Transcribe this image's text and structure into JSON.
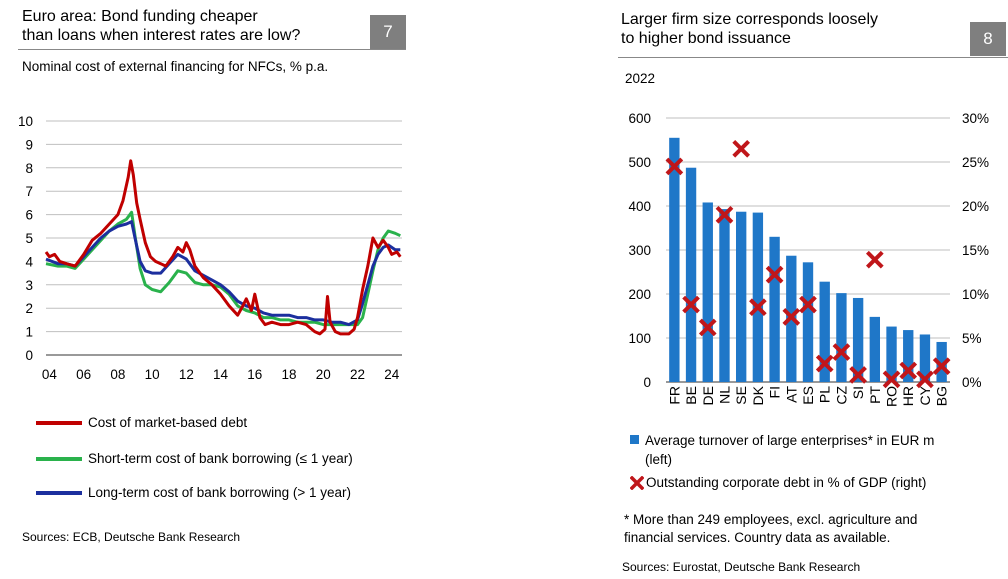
{
  "colors": {
    "market": "#c00000",
    "short_term": "#2ab24c",
    "long_term": "#1c2f9e",
    "bars": "#1f77c8",
    "markers": "#c0161a",
    "header_box": "#7f7f7f"
  },
  "left": {
    "title_line1": "Euro area: Bond funding cheaper",
    "title_line2": "than loans when interest rates are low?",
    "number": "7",
    "subtitle": "Nominal cost of external financing for NFCs, % p.a.",
    "legend": {
      "market": "Cost of market-based debt",
      "short": "Short-term cost of bank borrowing (≤ 1 year)",
      "long": "Long-term cost of bank borrowing (> 1 year)"
    },
    "source": "Sources: ECB, Deutsche Bank Research"
  },
  "right": {
    "title_line1": "Larger firm size corresponds loosely",
    "title_line2": "to higher bond issuance",
    "number": "8",
    "year_label": "2022",
    "legend": {
      "bars": "Average turnover of large enterprises* in EUR m",
      "bars_cont": "(left)",
      "markers": "Outstanding corporate debt in % of GDP (right)"
    },
    "note_line1": "* More than 249 employees, excl. agriculture and",
    "note_line2": "financial services. Country data as available.",
    "source": "Sources: Eurostat, Deutsche Bank Research"
  },
  "chart_data": [
    {
      "type": "line",
      "x_ticks": [
        "04",
        "06",
        "08",
        "10",
        "12",
        "14",
        "16",
        "18",
        "20",
        "22",
        "24"
      ],
      "y_ticks": [
        "0",
        "1",
        "2",
        "3",
        "4",
        "5",
        "6",
        "7",
        "8",
        "9",
        "10"
      ],
      "ylim": [
        0,
        10
      ],
      "xlim": [
        2003.8,
        2024.6
      ],
      "grid": true,
      "series": [
        {
          "name": "Cost of market-based debt",
          "points": [
            [
              2003.8,
              4.4
            ],
            [
              2004.0,
              4.2
            ],
            [
              2004.3,
              4.3
            ],
            [
              2004.6,
              4.0
            ],
            [
              2005.0,
              3.9
            ],
            [
              2005.5,
              3.8
            ],
            [
              2006.0,
              4.3
            ],
            [
              2006.5,
              4.9
            ],
            [
              2007.0,
              5.2
            ],
            [
              2007.5,
              5.6
            ],
            [
              2008.0,
              6.0
            ],
            [
              2008.3,
              6.6
            ],
            [
              2008.6,
              7.6
            ],
            [
              2008.75,
              8.3
            ],
            [
              2008.9,
              7.7
            ],
            [
              2009.1,
              6.5
            ],
            [
              2009.3,
              5.8
            ],
            [
              2009.6,
              4.8
            ],
            [
              2009.9,
              4.2
            ],
            [
              2010.2,
              4.0
            ],
            [
              2010.5,
              3.9
            ],
            [
              2010.8,
              3.8
            ],
            [
              2011.2,
              4.2
            ],
            [
              2011.5,
              4.6
            ],
            [
              2011.8,
              4.4
            ],
            [
              2012.0,
              4.8
            ],
            [
              2012.2,
              4.5
            ],
            [
              2012.5,
              3.8
            ],
            [
              2012.8,
              3.5
            ],
            [
              2013.0,
              3.3
            ],
            [
              2013.5,
              3.0
            ],
            [
              2014.0,
              2.6
            ],
            [
              2014.5,
              2.1
            ],
            [
              2015.0,
              1.7
            ],
            [
              2015.3,
              2.1
            ],
            [
              2015.5,
              2.4
            ],
            [
              2015.8,
              1.9
            ],
            [
              2016.0,
              2.6
            ],
            [
              2016.3,
              1.6
            ],
            [
              2016.6,
              1.3
            ],
            [
              2017.0,
              1.4
            ],
            [
              2017.5,
              1.3
            ],
            [
              2018.0,
              1.3
            ],
            [
              2018.5,
              1.4
            ],
            [
              2019.0,
              1.3
            ],
            [
              2019.5,
              1.0
            ],
            [
              2019.8,
              0.9
            ],
            [
              2020.1,
              1.1
            ],
            [
              2020.25,
              2.5
            ],
            [
              2020.4,
              1.4
            ],
            [
              2020.7,
              1.0
            ],
            [
              2021.0,
              0.9
            ],
            [
              2021.5,
              0.9
            ],
            [
              2021.8,
              1.1
            ],
            [
              2022.0,
              1.6
            ],
            [
              2022.3,
              2.8
            ],
            [
              2022.6,
              3.8
            ],
            [
              2022.9,
              5.0
            ],
            [
              2023.2,
              4.6
            ],
            [
              2023.5,
              4.9
            ],
            [
              2023.8,
              4.6
            ],
            [
              2024.0,
              4.3
            ],
            [
              2024.3,
              4.4
            ],
            [
              2024.5,
              4.2
            ]
          ]
        },
        {
          "name": "Short-term cost of bank borrowing (≤ 1 year)",
          "points": [
            [
              2003.8,
              3.9
            ],
            [
              2004.5,
              3.8
            ],
            [
              2005.0,
              3.8
            ],
            [
              2005.5,
              3.7
            ],
            [
              2006.0,
              4.1
            ],
            [
              2006.5,
              4.5
            ],
            [
              2007.0,
              4.9
            ],
            [
              2007.5,
              5.3
            ],
            [
              2008.0,
              5.6
            ],
            [
              2008.5,
              5.8
            ],
            [
              2008.8,
              6.1
            ],
            [
              2009.0,
              5.1
            ],
            [
              2009.3,
              3.7
            ],
            [
              2009.6,
              3.0
            ],
            [
              2010.0,
              2.8
            ],
            [
              2010.5,
              2.7
            ],
            [
              2011.0,
              3.1
            ],
            [
              2011.5,
              3.6
            ],
            [
              2012.0,
              3.5
            ],
            [
              2012.5,
              3.1
            ],
            [
              2013.0,
              3.0
            ],
            [
              2013.5,
              3.0
            ],
            [
              2014.0,
              2.9
            ],
            [
              2014.5,
              2.6
            ],
            [
              2015.0,
              2.1
            ],
            [
              2015.5,
              1.9
            ],
            [
              2016.0,
              1.8
            ],
            [
              2016.5,
              1.6
            ],
            [
              2017.0,
              1.6
            ],
            [
              2017.5,
              1.5
            ],
            [
              2018.0,
              1.5
            ],
            [
              2018.5,
              1.4
            ],
            [
              2019.0,
              1.4
            ],
            [
              2019.5,
              1.4
            ],
            [
              2020.0,
              1.3
            ],
            [
              2020.5,
              1.3
            ],
            [
              2021.0,
              1.3
            ],
            [
              2021.5,
              1.3
            ],
            [
              2022.0,
              1.3
            ],
            [
              2022.3,
              1.6
            ],
            [
              2022.6,
              2.6
            ],
            [
              2022.9,
              3.6
            ],
            [
              2023.2,
              4.5
            ],
            [
              2023.5,
              5.0
            ],
            [
              2023.8,
              5.3
            ],
            [
              2024.2,
              5.2
            ],
            [
              2024.5,
              5.1
            ]
          ]
        },
        {
          "name": "Long-term cost of bank borrowing (> 1 year)",
          "points": [
            [
              2003.8,
              4.1
            ],
            [
              2004.5,
              3.9
            ],
            [
              2005.0,
              3.9
            ],
            [
              2005.5,
              3.8
            ],
            [
              2006.0,
              4.2
            ],
            [
              2006.5,
              4.6
            ],
            [
              2007.0,
              5.0
            ],
            [
              2007.5,
              5.3
            ],
            [
              2008.0,
              5.5
            ],
            [
              2008.5,
              5.6
            ],
            [
              2008.8,
              5.7
            ],
            [
              2009.0,
              5.0
            ],
            [
              2009.3,
              4.0
            ],
            [
              2009.6,
              3.6
            ],
            [
              2010.0,
              3.5
            ],
            [
              2010.5,
              3.5
            ],
            [
              2011.0,
              3.9
            ],
            [
              2011.5,
              4.3
            ],
            [
              2012.0,
              4.1
            ],
            [
              2012.5,
              3.6
            ],
            [
              2013.0,
              3.4
            ],
            [
              2013.5,
              3.2
            ],
            [
              2014.0,
              3.0
            ],
            [
              2014.5,
              2.7
            ],
            [
              2015.0,
              2.3
            ],
            [
              2015.5,
              2.1
            ],
            [
              2016.0,
              2.0
            ],
            [
              2016.5,
              1.8
            ],
            [
              2017.0,
              1.7
            ],
            [
              2017.5,
              1.7
            ],
            [
              2018.0,
              1.7
            ],
            [
              2018.5,
              1.6
            ],
            [
              2019.0,
              1.6
            ],
            [
              2019.5,
              1.5
            ],
            [
              2020.0,
              1.5
            ],
            [
              2020.5,
              1.4
            ],
            [
              2021.0,
              1.4
            ],
            [
              2021.5,
              1.3
            ],
            [
              2022.0,
              1.5
            ],
            [
              2022.3,
              2.2
            ],
            [
              2022.6,
              3.0
            ],
            [
              2022.9,
              3.8
            ],
            [
              2023.2,
              4.3
            ],
            [
              2023.5,
              4.6
            ],
            [
              2023.8,
              4.7
            ],
            [
              2024.2,
              4.5
            ],
            [
              2024.5,
              4.5
            ]
          ]
        }
      ]
    },
    {
      "type": "bar",
      "categories": [
        "FR",
        "BE",
        "DE",
        "NL",
        "SE",
        "DK",
        "FI",
        "AT",
        "ES",
        "PL",
        "CZ",
        "SI",
        "PT",
        "RO",
        "HR",
        "CY",
        "BG"
      ],
      "series": [
        {
          "name": "Average turnover of large enterprises* in EUR m (left)",
          "axis": "left",
          "values": [
            555,
            487,
            408,
            393,
            387,
            385,
            330,
            287,
            272,
            228,
            202,
            191,
            148,
            126,
            118,
            108,
            91
          ]
        },
        {
          "name": "Outstanding corporate debt in % of GDP (right)",
          "axis": "right",
          "type": "scatter",
          "values": [
            24.5,
            8.8,
            6.2,
            19.0,
            26.5,
            8.5,
            12.2,
            7.4,
            8.8,
            2.1,
            3.4,
            0.8,
            13.9,
            0.3,
            1.3,
            0.3,
            1.8
          ]
        }
      ],
      "ylim_left": [
        0,
        600
      ],
      "ylim_right": [
        0,
        30
      ],
      "y_ticks_left": [
        "0",
        "100",
        "200",
        "300",
        "400",
        "500",
        "600"
      ],
      "y_ticks_right": [
        "0%",
        "5%",
        "10%",
        "15%",
        "20%",
        "25%",
        "30%"
      ],
      "grid": true
    }
  ]
}
